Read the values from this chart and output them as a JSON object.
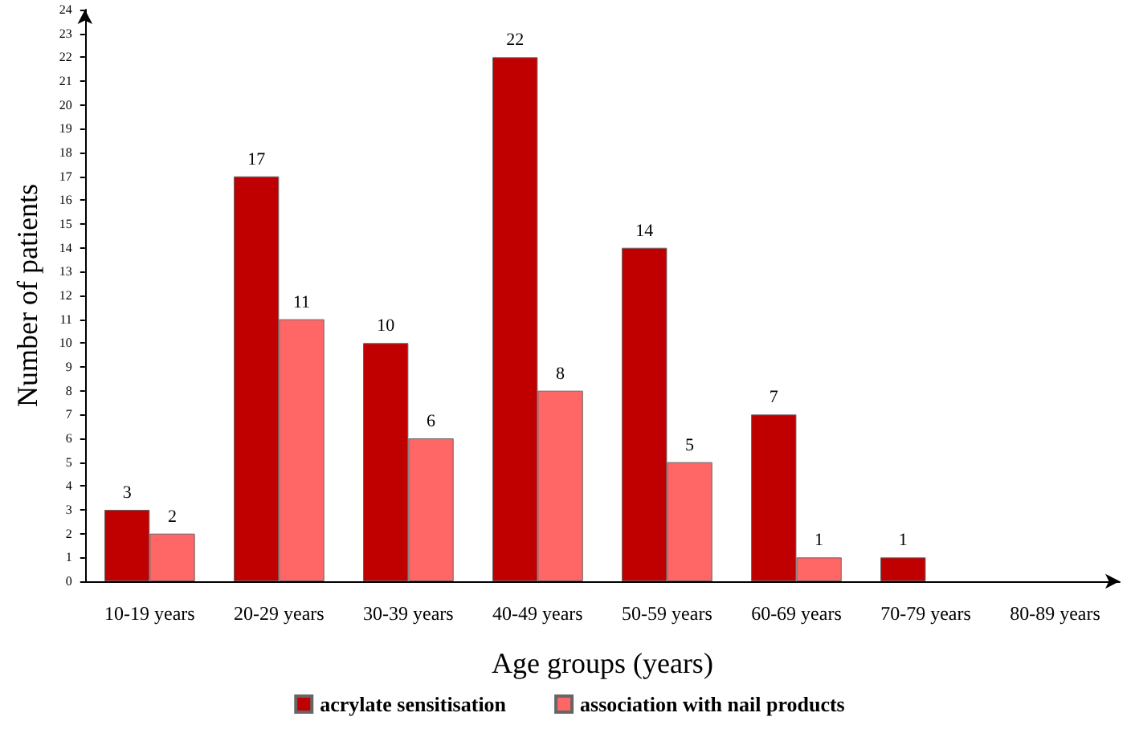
{
  "chart_data": {
    "type": "bar",
    "xlabel": "Age groups (years)",
    "ylabel": "Number of patients",
    "categories": [
      "10-19 years",
      "20-29 years",
      "30-39 years",
      "40-49 years",
      "50-59 years",
      "60-69 years",
      "70-79 years",
      "80-89 years"
    ],
    "series": [
      {
        "name": "acrylate sensitisation",
        "color": "#c00000",
        "values": [
          3,
          17,
          10,
          22,
          14,
          7,
          1,
          0
        ],
        "value_labels": [
          "3",
          "17",
          "10",
          "22",
          "14",
          "7",
          "1",
          null
        ]
      },
      {
        "name": "association with nail products",
        "color": "#ff6666",
        "values": [
          2,
          11,
          6,
          8,
          5,
          1,
          0,
          0
        ],
        "value_labels": [
          "2",
          "11",
          "6",
          "8",
          "5",
          "1",
          null,
          null
        ]
      }
    ],
    "ylim": [
      0,
      24
    ],
    "yticks": [
      0,
      1,
      2,
      3,
      4,
      5,
      6,
      7,
      8,
      9,
      10,
      11,
      12,
      13,
      14,
      15,
      16,
      17,
      18,
      19,
      20,
      21,
      22,
      23,
      24
    ],
    "grid": false,
    "legend": "bottom"
  }
}
